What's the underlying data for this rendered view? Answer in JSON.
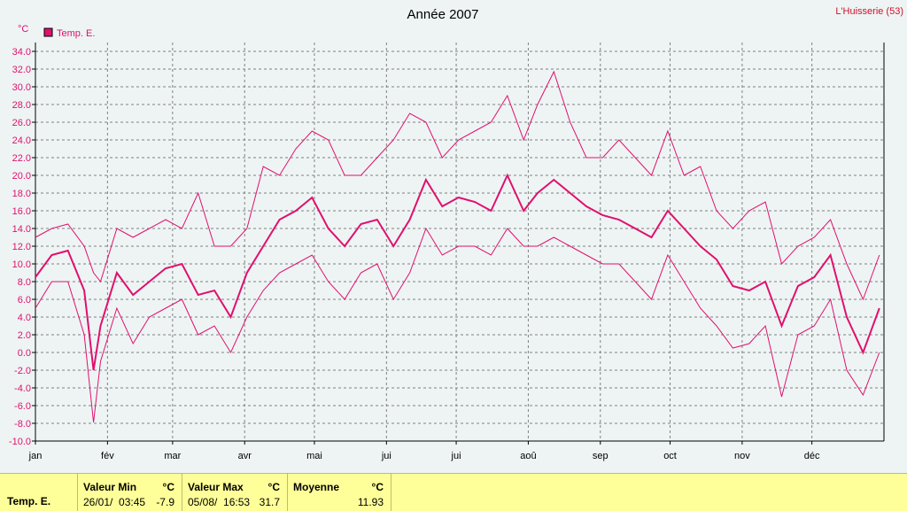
{
  "header": {
    "title": "Année 2007",
    "station": "L'Huisserie (53)"
  },
  "legend": {
    "label": "Temp. E.",
    "color": "#e0106e"
  },
  "chart_data": {
    "type": "line",
    "title": "Année 2007",
    "ylabel": "°C",
    "ylim": [
      -10,
      35
    ],
    "yticks": [
      -10,
      -8,
      -6,
      -4,
      -2,
      0,
      2,
      4,
      6,
      8,
      10,
      12,
      14,
      16,
      18,
      20,
      22,
      24,
      26,
      28,
      30,
      32,
      34
    ],
    "yticklabels": [
      "-10.0",
      "-8.0",
      "-6.0",
      "-4.0",
      "-2.0",
      "0.0",
      "2.0",
      "4.0",
      "6.0",
      "8.0",
      "10.0",
      "12.0",
      "14.0",
      "16.0",
      "18.0",
      "20.0",
      "22.0",
      "24.0",
      "26.0",
      "28.0",
      "30.0",
      "32.0",
      "34.0"
    ],
    "month_labels": [
      "jan",
      "fév",
      "mar",
      "avr",
      "mai",
      "jui",
      "jui",
      "aoû",
      "sep",
      "oct",
      "nov",
      "déc"
    ],
    "month_start_days": [
      1,
      32,
      60,
      91,
      121,
      152,
      182,
      213,
      244,
      274,
      305,
      335
    ],
    "days_in_year": 365,
    "grid": true,
    "series": [
      {
        "name": "Temp. E.",
        "color": "#e0106e",
        "x_days": [
          1,
          8,
          15,
          22,
          26,
          29,
          36,
          43,
          50,
          57,
          64,
          71,
          78,
          85,
          92,
          99,
          106,
          113,
          120,
          127,
          134,
          141,
          148,
          155,
          162,
          169,
          176,
          183,
          190,
          197,
          204,
          211,
          217,
          224,
          231,
          238,
          245,
          252,
          259,
          266,
          273,
          280,
          287,
          294,
          301,
          308,
          315,
          322,
          329,
          336,
          343,
          350,
          357,
          364
        ],
        "mean": [
          8.5,
          11.0,
          11.5,
          7.0,
          -2.0,
          3.0,
          9.0,
          6.5,
          8.0,
          9.5,
          10.0,
          6.5,
          7.0,
          4.0,
          9.0,
          12.0,
          15.0,
          16.0,
          17.5,
          14.0,
          12.0,
          14.5,
          15.0,
          12.0,
          15.0,
          19.5,
          16.5,
          17.5,
          17.0,
          16.0,
          20.0,
          16.0,
          18.0,
          19.5,
          18.0,
          16.5,
          15.5,
          15.0,
          14.0,
          13.0,
          16.0,
          14.0,
          12.0,
          10.5,
          7.5,
          7.0,
          8.0,
          3.0,
          7.5,
          8.5,
          11.0,
          4.0,
          0.0,
          5.0
        ],
        "max": [
          13.0,
          14.0,
          14.5,
          12.0,
          9.0,
          8.0,
          14.0,
          13.0,
          14.0,
          15.0,
          14.0,
          18.0,
          12.0,
          12.0,
          14.0,
          21.0,
          20.0,
          23.0,
          25.0,
          24.0,
          20.0,
          20.0,
          22.0,
          24.0,
          27.0,
          26.0,
          22.0,
          24.0,
          25.0,
          26.0,
          29.0,
          24.0,
          28.0,
          31.7,
          26.0,
          22.0,
          22.0,
          24.0,
          22.0,
          20.0,
          25.0,
          20.0,
          21.0,
          16.0,
          14.0,
          16.0,
          17.0,
          10.0,
          12.0,
          13.0,
          15.0,
          10.0,
          6.0,
          11.0
        ],
        "min": [
          5.0,
          8.0,
          8.0,
          2.0,
          -7.9,
          -1.0,
          5.0,
          1.0,
          4.0,
          5.0,
          6.0,
          2.0,
          3.0,
          0.0,
          4.0,
          7.0,
          9.0,
          10.0,
          11.0,
          8.0,
          6.0,
          9.0,
          10.0,
          6.0,
          9.0,
          14.0,
          11.0,
          12.0,
          12.0,
          11.0,
          14.0,
          12.0,
          12.0,
          13.0,
          12.0,
          11.0,
          10.0,
          10.0,
          8.0,
          6.0,
          11.0,
          8.0,
          5.0,
          3.0,
          0.5,
          1.0,
          3.0,
          -5.0,
          2.0,
          3.0,
          6.0,
          -2.0,
          -4.8,
          0.0
        ]
      }
    ]
  },
  "footer": {
    "series_name": "Temp. E.",
    "min": {
      "label": "Valeur Min",
      "unit": "°C",
      "datetime": "26/01/  03:45",
      "value": "-7.9"
    },
    "max": {
      "label": "Valeur Max",
      "unit": "°C",
      "datetime": "05/08/  16:53",
      "value": "31.7"
    },
    "avg": {
      "label": "Moyenne",
      "unit": "°C",
      "value": "11.93"
    }
  }
}
